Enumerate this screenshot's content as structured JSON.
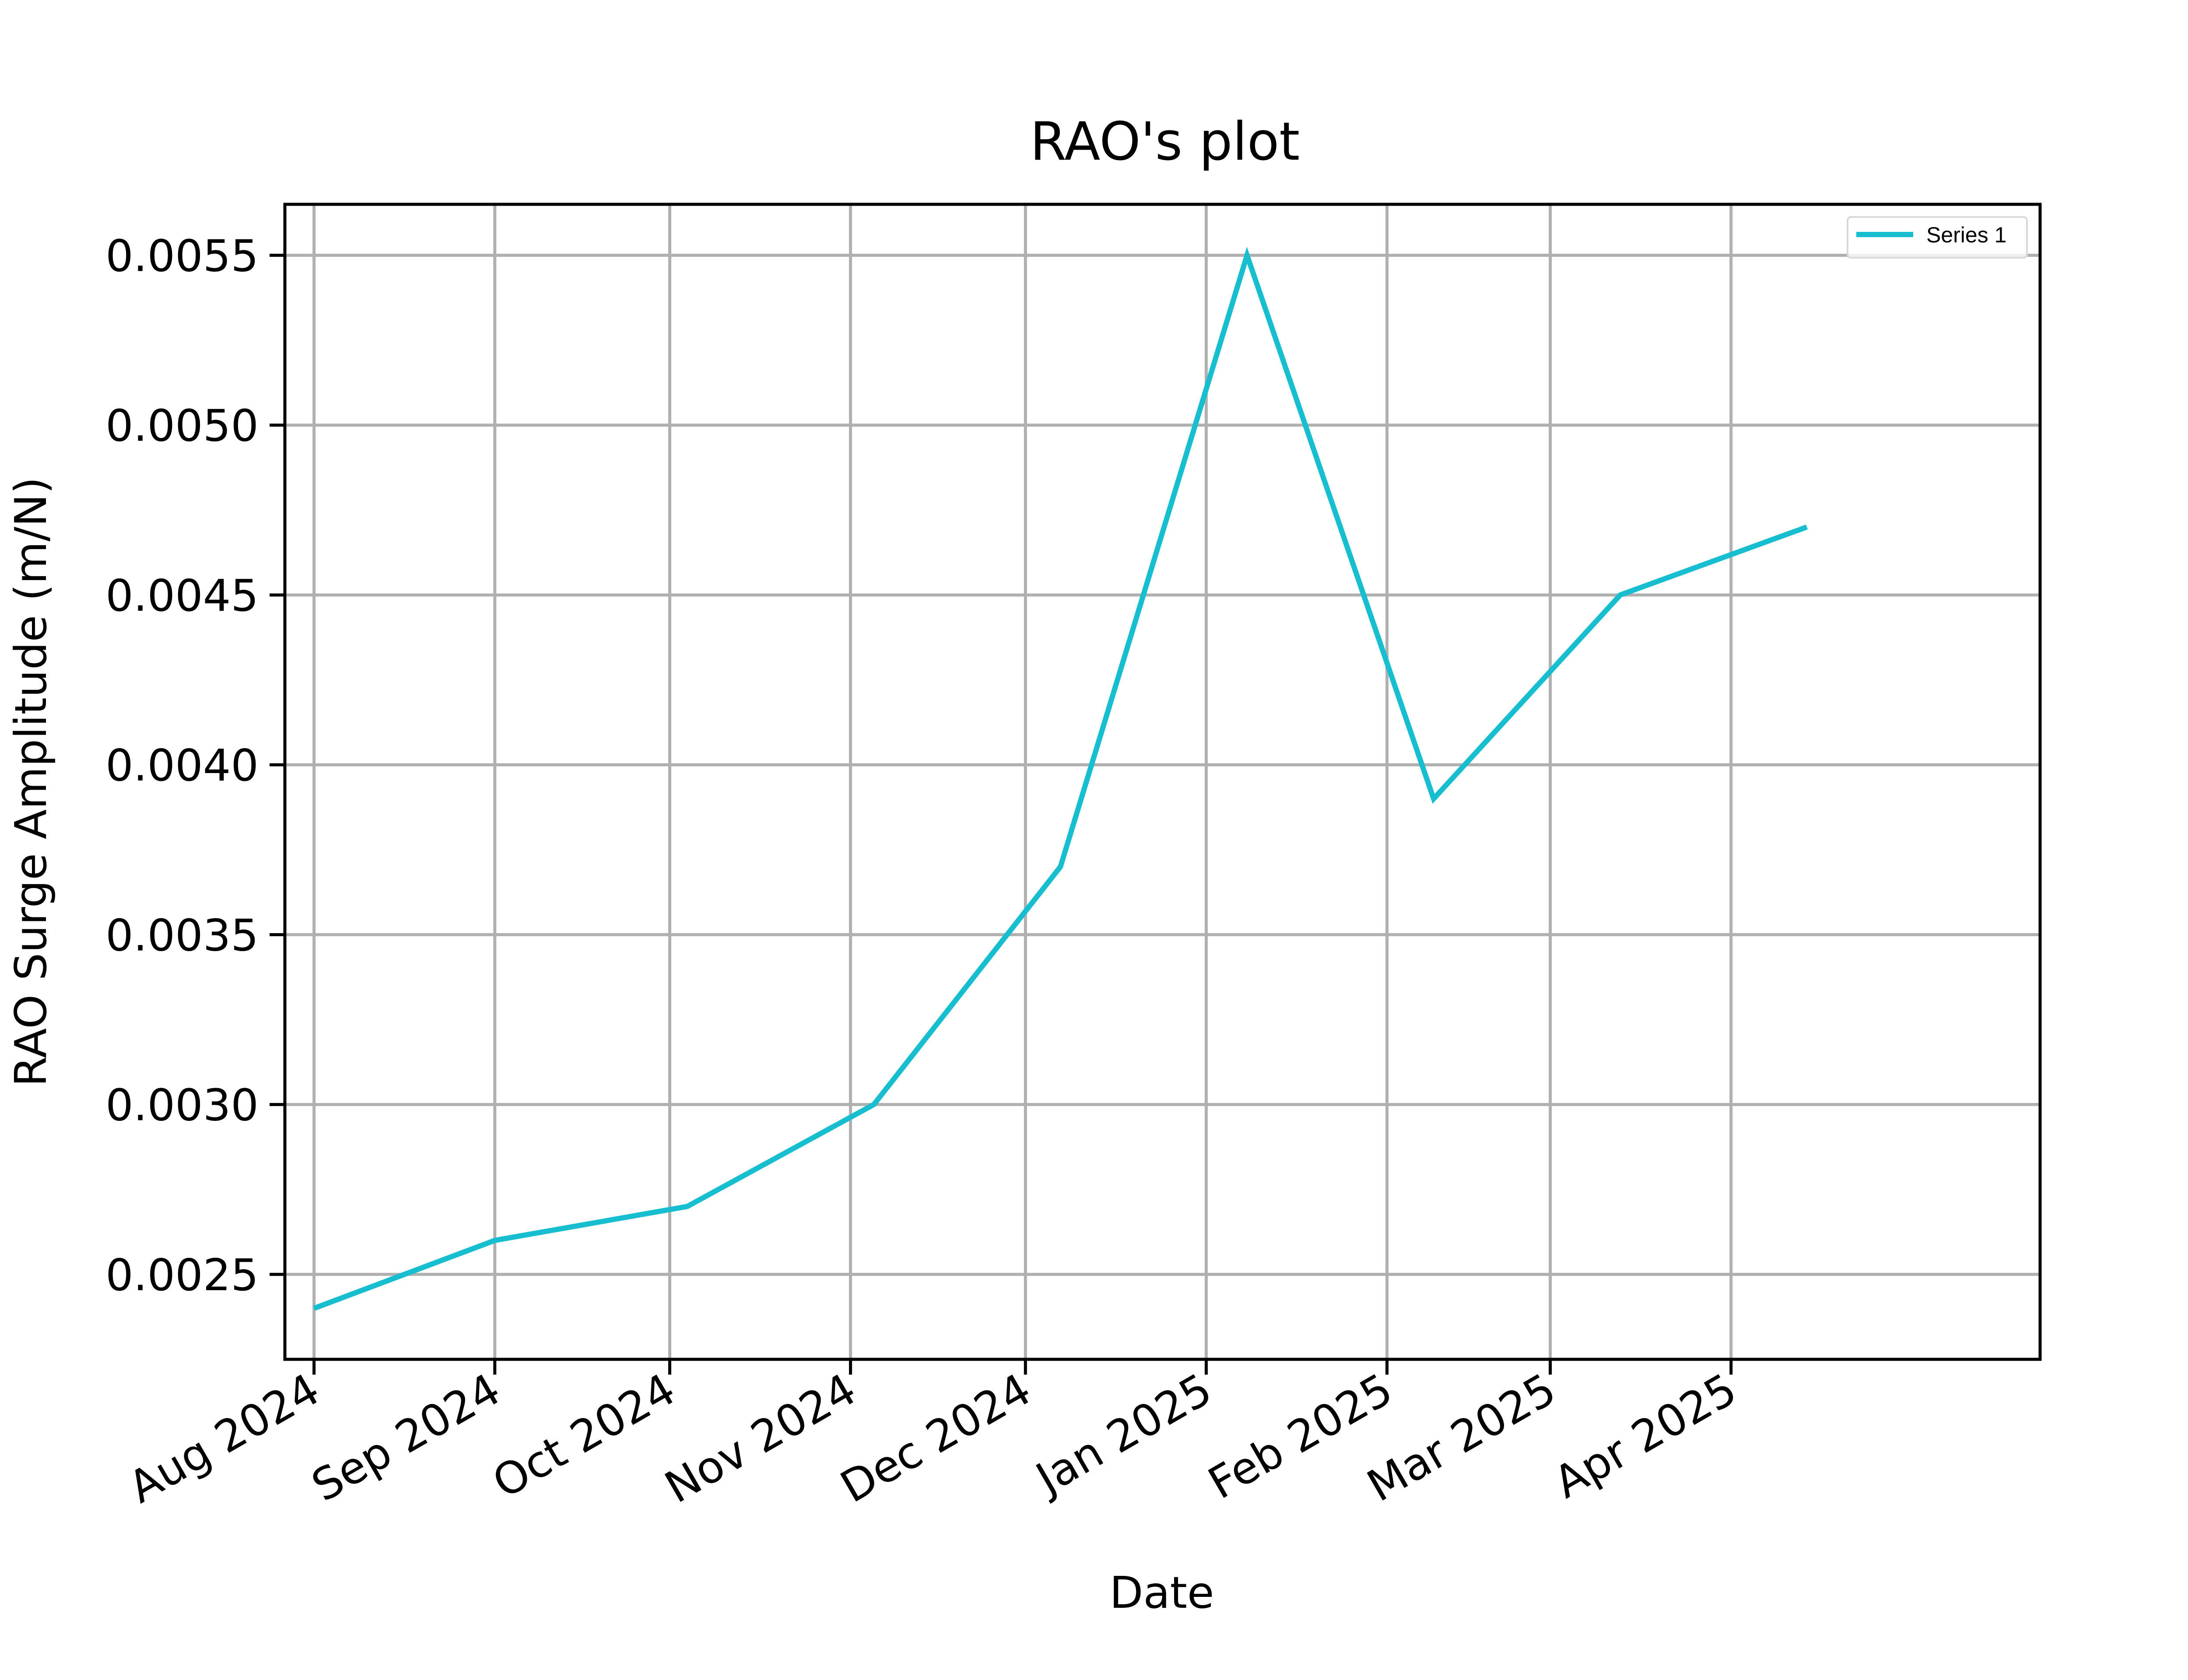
{
  "chart_data": {
    "type": "line",
    "title": "RAO's plot",
    "xlabel": "Date",
    "ylabel": "RAO Surge Amplitude (m/N)",
    "grid": true,
    "legend_position": "top-right",
    "x_range": [
      "2024-07-27",
      "2025-05-24"
    ],
    "ylim": [
      0.00225,
      0.00565
    ],
    "x_ticks": [
      {
        "date": "2024-08-01",
        "label": "Aug 2024"
      },
      {
        "date": "2024-09-01",
        "label": "Sep 2024"
      },
      {
        "date": "2024-10-01",
        "label": "Oct 2024"
      },
      {
        "date": "2024-11-01",
        "label": "Nov 2024"
      },
      {
        "date": "2024-12-01",
        "label": "Dec 2024"
      },
      {
        "date": "2025-01-01",
        "label": "Jan 2025"
      },
      {
        "date": "2025-02-01",
        "label": "Feb 2025"
      },
      {
        "date": "2025-03-01",
        "label": "Mar 2025"
      },
      {
        "date": "2025-04-01",
        "label": "Apr 2025"
      }
    ],
    "y_ticks": [
      {
        "value": 0.0025,
        "label": "0.0025"
      },
      {
        "value": 0.003,
        "label": "0.0030"
      },
      {
        "value": 0.0035,
        "label": "0.0035"
      },
      {
        "value": 0.004,
        "label": "0.0040"
      },
      {
        "value": 0.0045,
        "label": "0.0045"
      },
      {
        "value": 0.005,
        "label": "0.0050"
      },
      {
        "value": 0.0055,
        "label": "0.0055"
      }
    ],
    "series": [
      {
        "name": "Series 1",
        "color": "#17becf",
        "points": [
          {
            "x": "2024-08-01",
            "y": 0.0024
          },
          {
            "x": "2024-09-01",
            "y": 0.0026
          },
          {
            "x": "2024-10-04",
            "y": 0.0027
          },
          {
            "x": "2024-11-05",
            "y": 0.003
          },
          {
            "x": "2024-12-07",
            "y": 0.0037
          },
          {
            "x": "2025-01-08",
            "y": 0.0055
          },
          {
            "x": "2025-02-09",
            "y": 0.0039
          },
          {
            "x": "2025-03-13",
            "y": 0.0045
          },
          {
            "x": "2025-04-14",
            "y": 0.0047
          }
        ]
      }
    ]
  }
}
